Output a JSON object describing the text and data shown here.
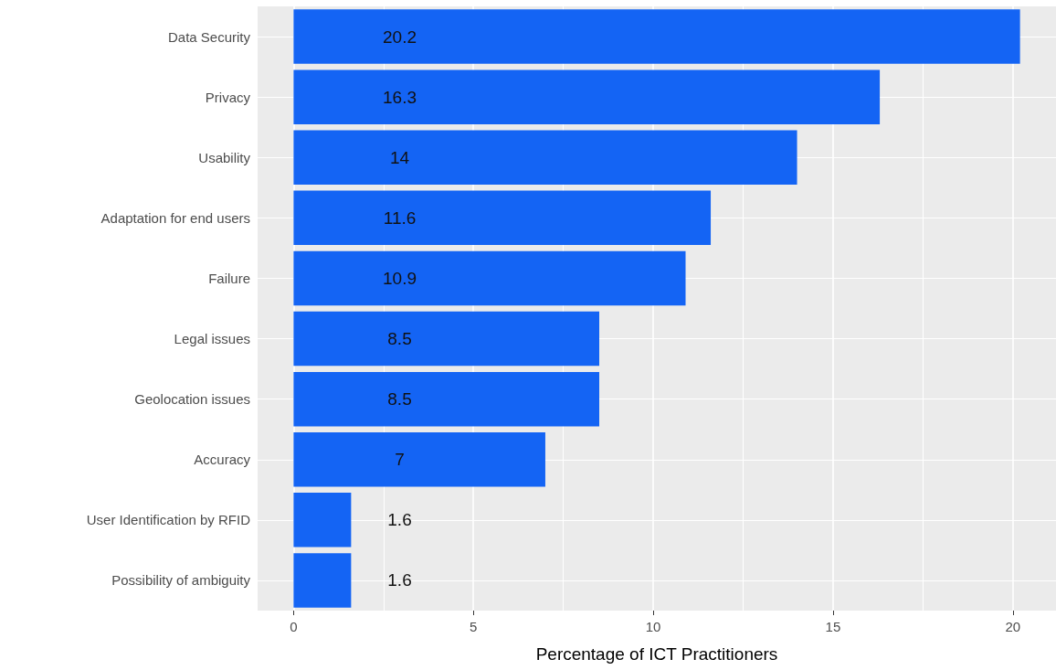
{
  "chart_data": {
    "type": "bar",
    "orientation": "horizontal",
    "xlabel": "Percentage of ICT Practitioners",
    "categories": [
      "Data Security",
      "Privacy",
      "Usability",
      "Adaptation for end users",
      "Failure",
      "Legal issues",
      "Geolocation issues",
      "Accuracy",
      "User Identification by RFID",
      "Possibility of ambiguity"
    ],
    "values": [
      20.2,
      16.3,
      14,
      11.6,
      10.9,
      8.5,
      8.5,
      7,
      1.6,
      1.6
    ],
    "color": "#1464f4",
    "data_labels": true,
    "grid": true,
    "xlim": [
      -1,
      21.2
    ],
    "xticks": [
      0,
      5,
      10,
      15,
      20
    ]
  }
}
